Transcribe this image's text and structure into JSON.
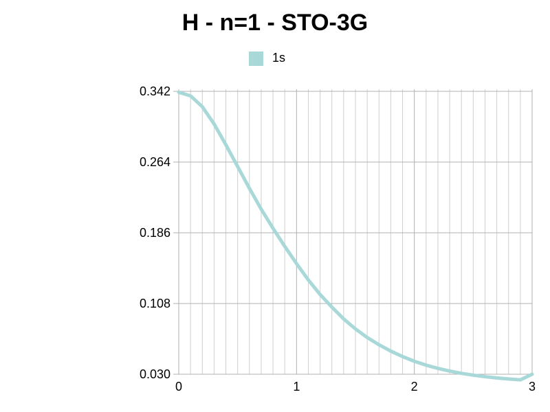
{
  "chart_data": {
    "type": "line",
    "title": "H - n=1 - STO-3G",
    "xlabel": "",
    "ylabel": "",
    "xlim": [
      0,
      3
    ],
    "ylim": [
      0.03,
      0.342
    ],
    "x_ticks": [
      "0",
      "1",
      "2",
      "3"
    ],
    "y_ticks": [
      "0.342",
      "0.264",
      "0.186",
      "0.108",
      "0.030"
    ],
    "grid": true,
    "legend_position": "top",
    "series": [
      {
        "name": "1s",
        "color": "#a8d8d8",
        "x": [
          0,
          0.1,
          0.2,
          0.3,
          0.4,
          0.5,
          0.6,
          0.7,
          0.8,
          0.9,
          1.0,
          1.1,
          1.2,
          1.3,
          1.4,
          1.5,
          1.6,
          1.7,
          1.8,
          1.9,
          2.0,
          2.1,
          2.2,
          2.3,
          2.4,
          2.5,
          2.6,
          2.7,
          2.8,
          2.9,
          3.0
        ],
        "y": [
          0.341,
          0.337,
          0.325,
          0.306,
          0.283,
          0.259,
          0.235,
          0.212,
          0.191,
          0.171,
          0.152,
          0.134,
          0.118,
          0.104,
          0.091,
          0.08,
          0.0705,
          0.0625,
          0.0555,
          0.0495,
          0.0443,
          0.04,
          0.0365,
          0.0335,
          0.031,
          0.029,
          0.0273,
          0.0259,
          0.0248,
          0.0238,
          0.03
        ]
      }
    ]
  }
}
